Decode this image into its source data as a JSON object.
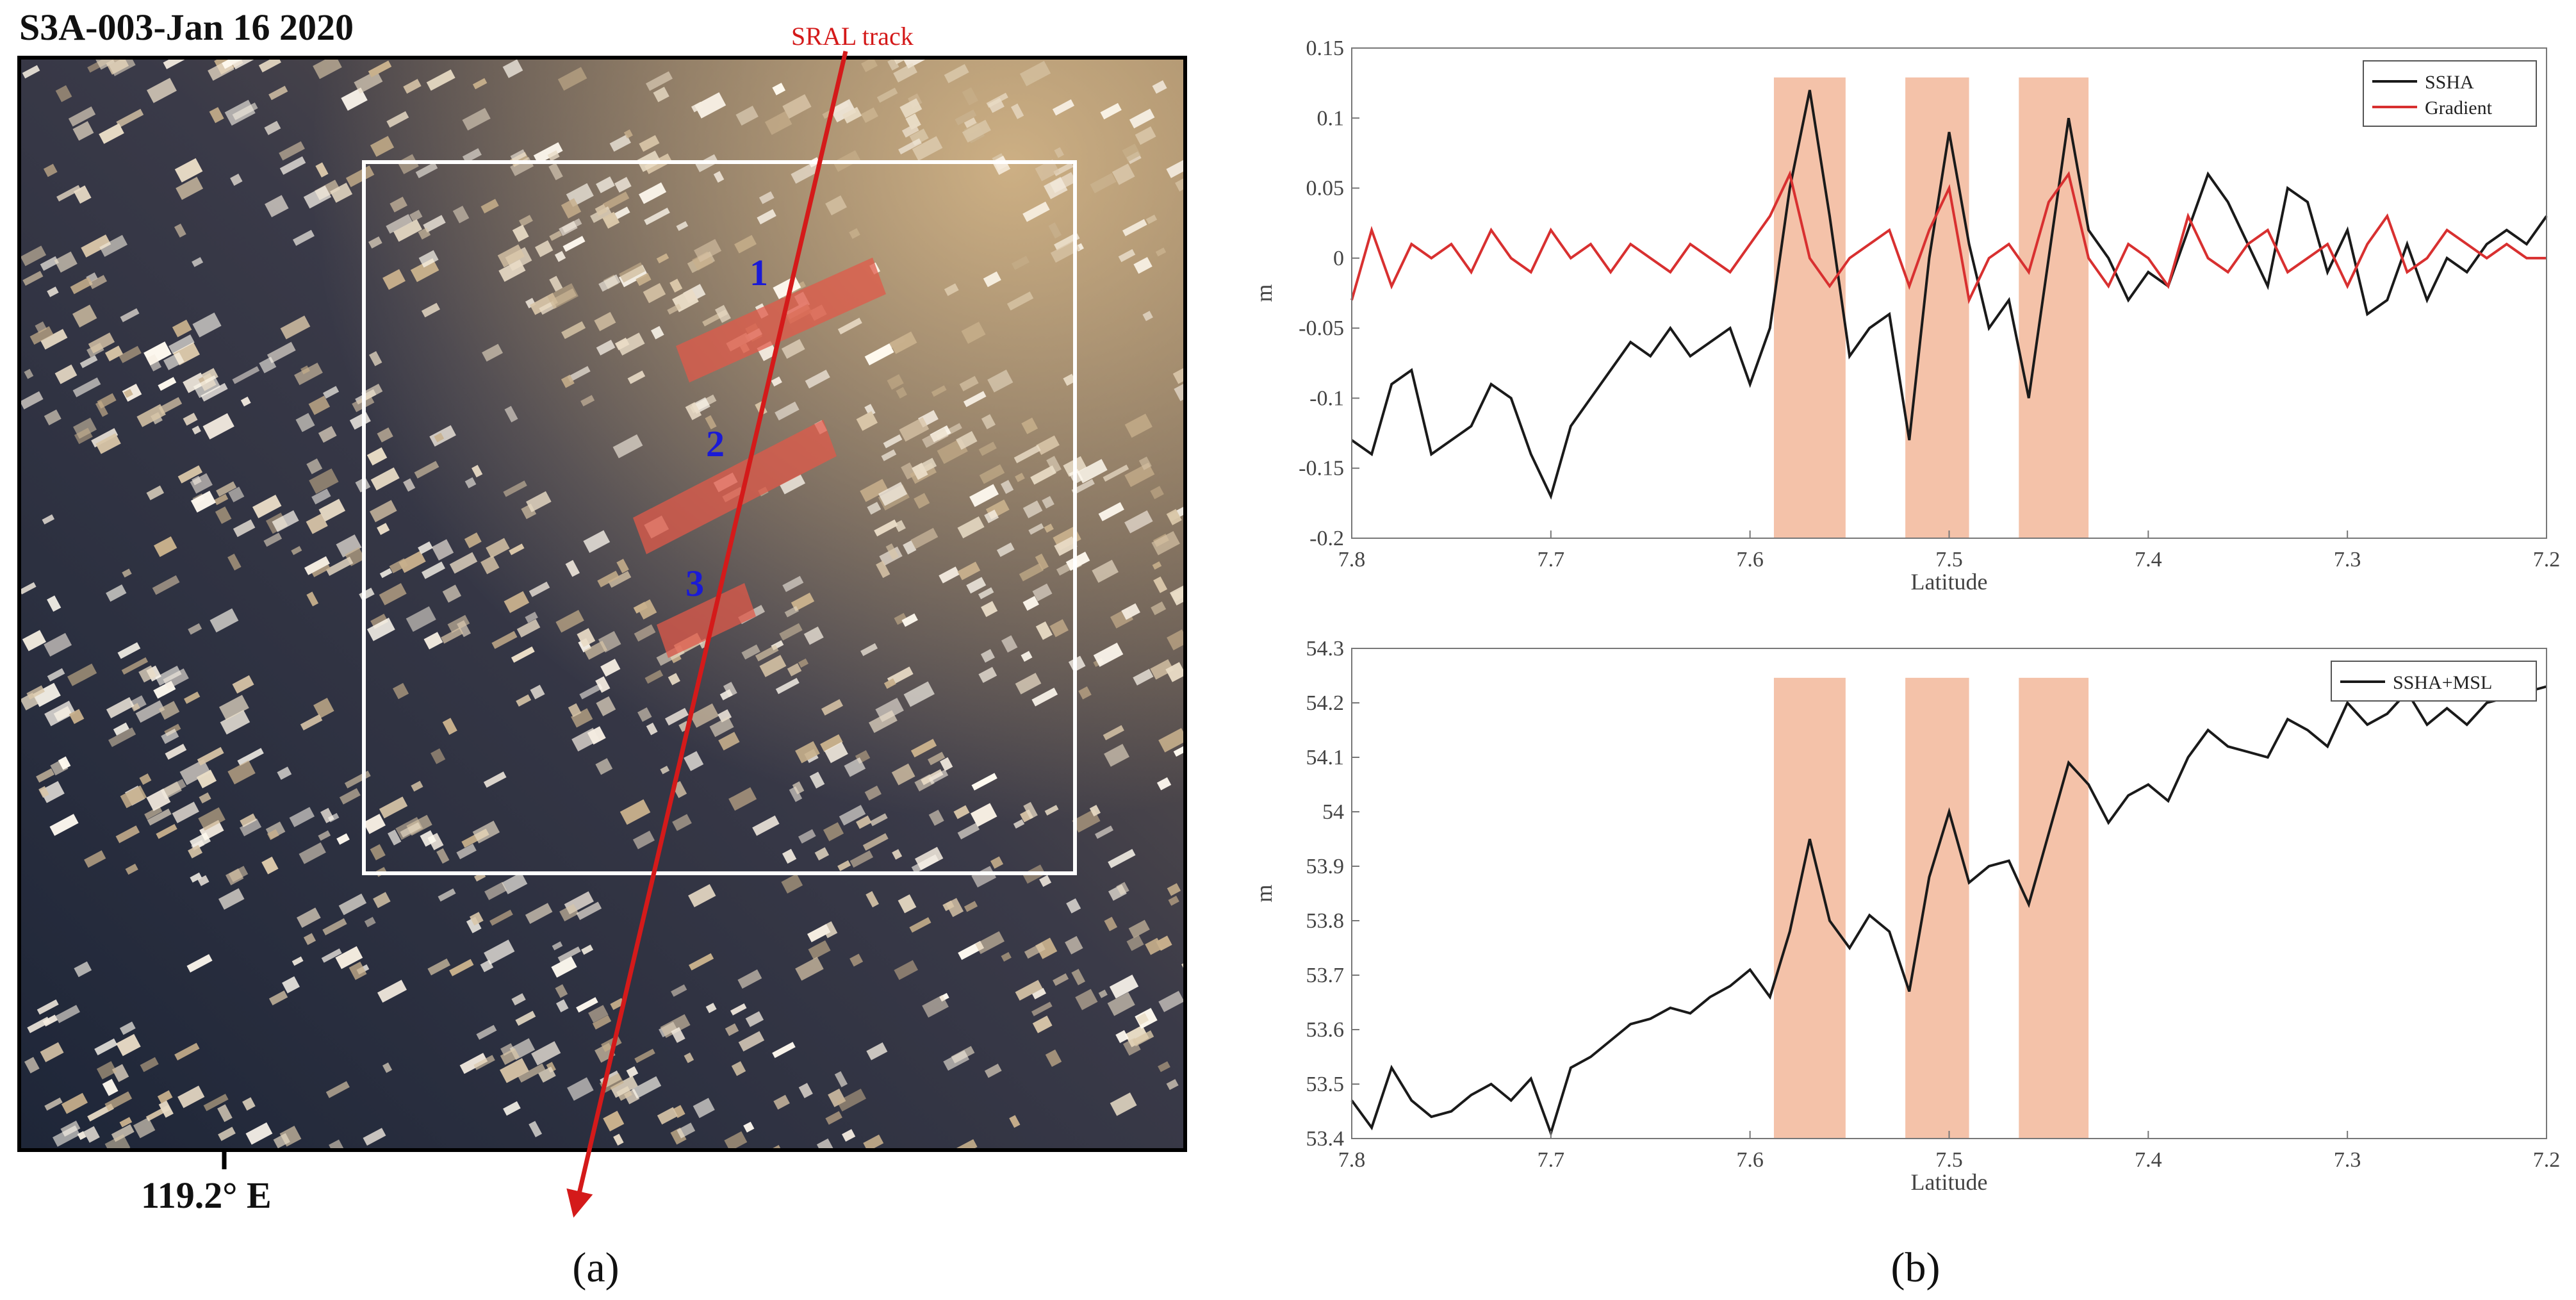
{
  "panel_a": {
    "title": "S3A-003-Jan 16 2020",
    "track_label": "SRAL track",
    "lon_label": "119.2° E",
    "markers": [
      "1",
      "2",
      "3"
    ],
    "caption": "(a)",
    "colors": {
      "track": "#d41a1a",
      "marker_text": "#1a1ad6",
      "box": "#ffffff",
      "band": "#e05a4a"
    }
  },
  "panel_b": {
    "caption": "(b)",
    "highlight_color": "#f2b79a"
  },
  "chart_data": [
    {
      "type": "line",
      "xlabel": "Latitude",
      "ylabel": "m",
      "xlim": [
        7.8,
        7.2
      ],
      "ylim": [
        -0.2,
        0.15
      ],
      "xticks": [
        "7.8",
        "7.7",
        "7.6",
        "7.5",
        "7.4",
        "7.3",
        "7.2"
      ],
      "yticks": [
        "-0.2",
        "-0.15",
        "-0.1",
        "-0.05",
        "0",
        "0.05",
        "0.1",
        "0.15"
      ],
      "legend_position": "top-right",
      "highlight_bands": [
        [
          7.588,
          7.552
        ],
        [
          7.522,
          7.49
        ],
        [
          7.465,
          7.43
        ]
      ],
      "series": [
        {
          "name": "SSHA",
          "color": "#1a1a1a",
          "x": [
            7.8,
            7.79,
            7.78,
            7.77,
            7.76,
            7.75,
            7.74,
            7.73,
            7.72,
            7.71,
            7.7,
            7.69,
            7.68,
            7.67,
            7.66,
            7.65,
            7.64,
            7.63,
            7.62,
            7.61,
            7.6,
            7.59,
            7.58,
            7.57,
            7.56,
            7.55,
            7.54,
            7.53,
            7.52,
            7.51,
            7.5,
            7.49,
            7.48,
            7.47,
            7.46,
            7.45,
            7.44,
            7.43,
            7.42,
            7.41,
            7.4,
            7.39,
            7.38,
            7.37,
            7.36,
            7.35,
            7.34,
            7.33,
            7.32,
            7.31,
            7.3,
            7.29,
            7.28,
            7.27,
            7.26,
            7.25,
            7.24,
            7.23,
            7.22,
            7.21,
            7.2
          ],
          "y": [
            -0.13,
            -0.14,
            -0.09,
            -0.08,
            -0.14,
            -0.13,
            -0.12,
            -0.09,
            -0.1,
            -0.14,
            -0.17,
            -0.12,
            -0.1,
            -0.08,
            -0.06,
            -0.07,
            -0.05,
            -0.07,
            -0.06,
            -0.05,
            -0.09,
            -0.05,
            0.05,
            0.12,
            0.03,
            -0.07,
            -0.05,
            -0.04,
            -0.13,
            0.0,
            0.09,
            0.01,
            -0.05,
            -0.03,
            -0.1,
            0.0,
            0.1,
            0.02,
            0.0,
            -0.03,
            -0.01,
            -0.02,
            0.02,
            0.06,
            0.04,
            0.01,
            -0.02,
            0.05,
            0.04,
            -0.01,
            0.02,
            -0.04,
            -0.03,
            0.01,
            -0.03,
            0.0,
            -0.01,
            0.01,
            0.02,
            0.01,
            0.03
          ]
        },
        {
          "name": "Gradient",
          "color": "#d83030",
          "x": [
            7.8,
            7.79,
            7.78,
            7.77,
            7.76,
            7.75,
            7.74,
            7.73,
            7.72,
            7.71,
            7.7,
            7.69,
            7.68,
            7.67,
            7.66,
            7.65,
            7.64,
            7.63,
            7.62,
            7.61,
            7.6,
            7.59,
            7.58,
            7.57,
            7.56,
            7.55,
            7.54,
            7.53,
            7.52,
            7.51,
            7.5,
            7.49,
            7.48,
            7.47,
            7.46,
            7.45,
            7.44,
            7.43,
            7.42,
            7.41,
            7.4,
            7.39,
            7.38,
            7.37,
            7.36,
            7.35,
            7.34,
            7.33,
            7.32,
            7.31,
            7.3,
            7.29,
            7.28,
            7.27,
            7.26,
            7.25,
            7.24,
            7.23,
            7.22,
            7.21,
            7.2
          ],
          "y": [
            -0.03,
            0.02,
            -0.02,
            0.01,
            0.0,
            0.01,
            -0.01,
            0.02,
            0.0,
            -0.01,
            0.02,
            0.0,
            0.01,
            -0.01,
            0.01,
            0.0,
            -0.01,
            0.01,
            0.0,
            -0.01,
            0.01,
            0.03,
            0.06,
            0.0,
            -0.02,
            0.0,
            0.01,
            0.02,
            -0.02,
            0.02,
            0.05,
            -0.03,
            0.0,
            0.01,
            -0.01,
            0.04,
            0.06,
            0.0,
            -0.02,
            0.01,
            0.0,
            -0.02,
            0.03,
            0.0,
            -0.01,
            0.01,
            0.02,
            -0.01,
            0.0,
            0.01,
            -0.02,
            0.01,
            0.03,
            -0.01,
            0.0,
            0.02,
            0.01,
            0.0,
            0.01,
            0.0,
            0.0
          ]
        }
      ]
    },
    {
      "type": "line",
      "xlabel": "Latitude",
      "ylabel": "m",
      "xlim": [
        7.8,
        7.2
      ],
      "ylim": [
        53.4,
        54.3
      ],
      "xticks": [
        "7.8",
        "7.7",
        "7.6",
        "7.5",
        "7.4",
        "7.3",
        "7.2"
      ],
      "yticks": [
        "53.4",
        "53.5",
        "53.6",
        "53.7",
        "53.8",
        "53.9",
        "54",
        "54.1",
        "54.2",
        "54.3"
      ],
      "legend_position": "top-right",
      "highlight_bands": [
        [
          7.588,
          7.552
        ],
        [
          7.522,
          7.49
        ],
        [
          7.465,
          7.43
        ]
      ],
      "series": [
        {
          "name": "SSHA+MSL",
          "color": "#1a1a1a",
          "x": [
            7.8,
            7.79,
            7.78,
            7.77,
            7.76,
            7.75,
            7.74,
            7.73,
            7.72,
            7.71,
            7.7,
            7.69,
            7.68,
            7.67,
            7.66,
            7.65,
            7.64,
            7.63,
            7.62,
            7.61,
            7.6,
            7.59,
            7.58,
            7.57,
            7.56,
            7.55,
            7.54,
            7.53,
            7.52,
            7.51,
            7.5,
            7.49,
            7.48,
            7.47,
            7.46,
            7.45,
            7.44,
            7.43,
            7.42,
            7.41,
            7.4,
            7.39,
            7.38,
            7.37,
            7.36,
            7.35,
            7.34,
            7.33,
            7.32,
            7.31,
            7.3,
            7.29,
            7.28,
            7.27,
            7.26,
            7.25,
            7.24,
            7.23,
            7.22,
            7.21,
            7.2
          ],
          "y": [
            53.47,
            53.42,
            53.53,
            53.47,
            53.44,
            53.45,
            53.48,
            53.5,
            53.47,
            53.51,
            53.41,
            53.53,
            53.55,
            53.58,
            53.61,
            53.62,
            53.64,
            53.63,
            53.66,
            53.68,
            53.71,
            53.66,
            53.78,
            53.95,
            53.8,
            53.75,
            53.81,
            53.78,
            53.67,
            53.88,
            54.0,
            53.87,
            53.9,
            53.91,
            53.83,
            53.96,
            54.09,
            54.05,
            53.98,
            54.03,
            54.05,
            54.02,
            54.1,
            54.15,
            54.12,
            54.11,
            54.1,
            54.17,
            54.15,
            54.12,
            54.2,
            54.16,
            54.18,
            54.22,
            54.16,
            54.19,
            54.16,
            54.2,
            54.21,
            54.22,
            54.23
          ]
        }
      ]
    }
  ]
}
